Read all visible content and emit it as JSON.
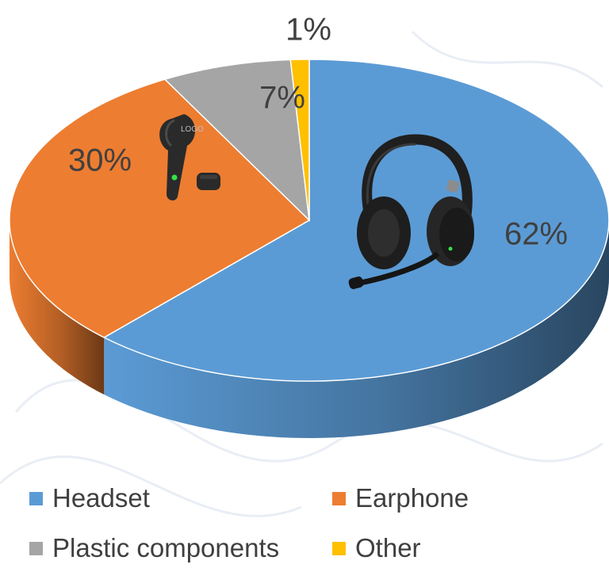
{
  "chart_data": {
    "type": "pie",
    "style": "3d-tilted",
    "title": "",
    "categories": [
      "Headset",
      "Earphone",
      "Plastic components",
      "Other"
    ],
    "values": [
      62,
      30,
      7,
      1
    ],
    "data_labels": [
      "62%",
      "30%",
      "7%",
      "1%"
    ],
    "colors": [
      "#5B9BD5",
      "#ED7D31",
      "#A5A5A5",
      "#FFC000"
    ],
    "legend_position": "bottom",
    "images": [
      {
        "slice": "Headset",
        "icon": "headset-icon"
      },
      {
        "slice": "Earphone",
        "icon": "earbud-icon",
        "text": "LOGO"
      }
    ]
  }
}
